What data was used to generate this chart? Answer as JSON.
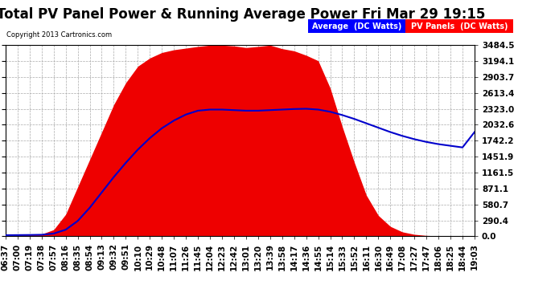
{
  "title": "Total PV Panel Power & Running Average Power Fri Mar 29 19:15",
  "copyright": "Copyright 2013 Cartronics.com",
  "legend_avg": "Average  (DC Watts)",
  "legend_pv": "PV Panels  (DC Watts)",
  "ymax": 3484.5,
  "ytick_values": [
    0.0,
    290.4,
    580.7,
    871.1,
    1161.5,
    1451.9,
    1742.2,
    2032.6,
    2323.0,
    2613.4,
    2903.7,
    3194.1,
    3484.5
  ],
  "background_color": "#ffffff",
  "fill_color": "#ee0000",
  "line_color": "#0000cc",
  "grid_color": "#aaaaaa",
  "title_fontsize": 12,
  "tick_label_fontsize": 7.5,
  "x_labels": [
    "06:37",
    "07:00",
    "07:19",
    "07:38",
    "07:57",
    "08:16",
    "08:35",
    "08:54",
    "09:13",
    "09:32",
    "09:51",
    "10:10",
    "10:29",
    "10:48",
    "11:07",
    "11:26",
    "11:45",
    "12:04",
    "12:23",
    "12:42",
    "13:01",
    "13:20",
    "13:39",
    "13:58",
    "14:17",
    "14:36",
    "14:55",
    "15:14",
    "15:33",
    "15:52",
    "16:11",
    "16:30",
    "16:49",
    "17:08",
    "17:27",
    "17:47",
    "18:06",
    "18:25",
    "18:44",
    "19:03"
  ],
  "pv_values": [
    20,
    25,
    30,
    40,
    120,
    400,
    900,
    1400,
    1900,
    2400,
    2800,
    3100,
    3250,
    3350,
    3400,
    3430,
    3460,
    3484,
    3484,
    3470,
    3440,
    3460,
    3484,
    3420,
    3380,
    3300,
    3200,
    2700,
    2000,
    1350,
    750,
    380,
    180,
    80,
    35,
    15,
    8,
    4,
    2,
    1
  ],
  "avg_values": [
    20,
    22,
    24,
    28,
    50,
    120,
    280,
    520,
    800,
    1080,
    1340,
    1580,
    1790,
    1970,
    2110,
    2220,
    2290,
    2310,
    2310,
    2300,
    2290,
    2290,
    2300,
    2310,
    2320,
    2325,
    2310,
    2270,
    2210,
    2140,
    2060,
    1980,
    1900,
    1830,
    1770,
    1720,
    1680,
    1650,
    1620,
    1900
  ]
}
